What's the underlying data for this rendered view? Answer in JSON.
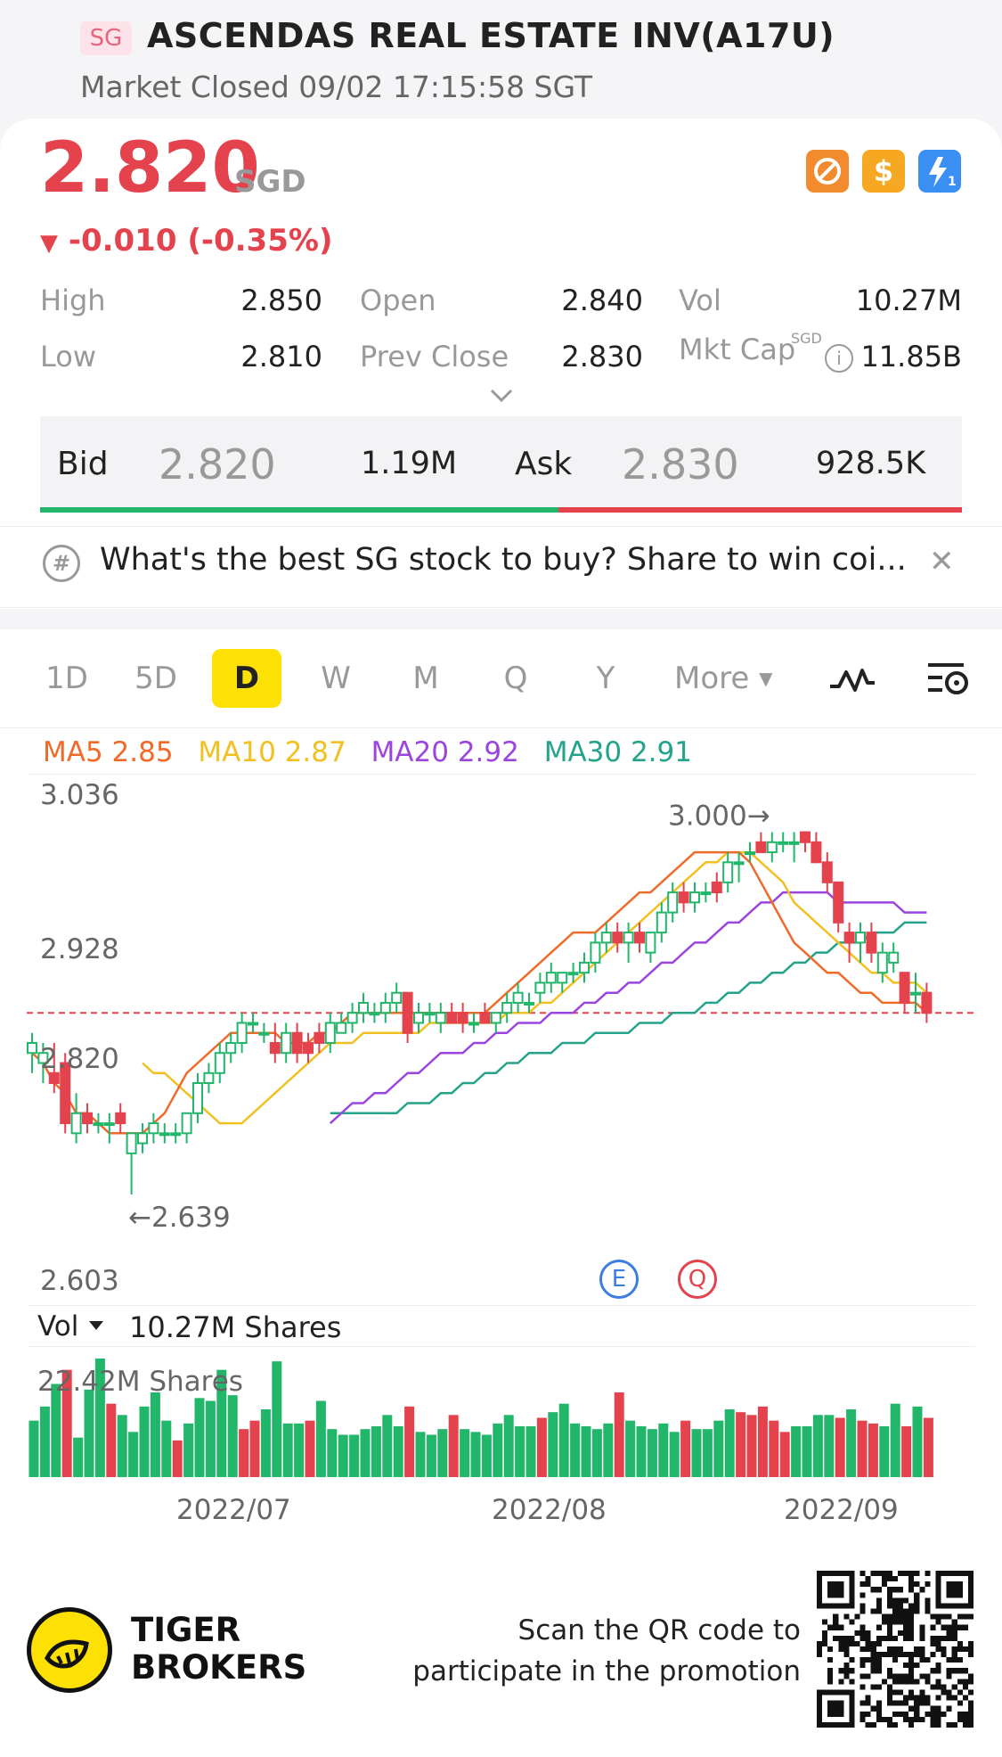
{
  "header": {
    "market_badge": "SG",
    "stock_name": "ASCENDAS REAL ESTATE INV(A17U)",
    "market_status": "Market Closed 09/02 17:15:58 SGT"
  },
  "quote": {
    "price": "2.820",
    "currency": "SGD",
    "change": "-0.010 (-0.35%)",
    "badges": [
      "no-short-icon",
      "dollar-icon",
      "lightning-icon"
    ]
  },
  "stats": {
    "high_label": "High",
    "high": "2.850",
    "low_label": "Low",
    "low": "2.810",
    "open_label": "Open",
    "open": "2.840",
    "prev_close_label": "Prev Close",
    "prev_close": "2.830",
    "vol_label": "Vol",
    "vol": "10.27M",
    "mkt_cap_label": "Mkt Cap",
    "mkt_cap_currency": "SGD",
    "mkt_cap": "11.85B"
  },
  "bidask": {
    "bid_label": "Bid",
    "bid_price": "2.820",
    "bid_size": "1.19M",
    "ask_label": "Ask",
    "ask_price": "2.830",
    "ask_size": "928.5K"
  },
  "promo": {
    "text": "What's the best SG stock to buy? Share to win coi..."
  },
  "tabs": {
    "items": [
      "1D",
      "5D",
      "D",
      "W",
      "M",
      "Q",
      "Y"
    ],
    "active": "D",
    "more": "More"
  },
  "indicators": {
    "ma5": "MA5 2.85",
    "ma10": "MA10 2.87",
    "ma20": "MA20 2.92",
    "ma30": "MA30 2.91"
  },
  "colors": {
    "up": "#21b66a",
    "down": "#e4434d",
    "ma5": "#f06a2a",
    "ma10": "#f2c021",
    "ma20": "#9b45e0",
    "ma30": "#23a38a"
  },
  "chart_data": {
    "type": "candlestick",
    "y_axis_labels": [
      "3.036",
      "2.928",
      "2.820",
      "2.603"
    ],
    "ylim": [
      2.603,
      3.036
    ],
    "current_price_line": 2.82,
    "high_marker": "3.000",
    "low_marker": "2.639",
    "x_labels": [
      "2022/07",
      "2022/08",
      "2022/09"
    ],
    "events": [
      "E",
      "Q"
    ],
    "candles": [
      {
        "o": 2.78,
        "h": 2.8,
        "l": 2.76,
        "c": 2.79
      },
      {
        "o": 2.77,
        "h": 2.79,
        "l": 2.75,
        "c": 2.78
      },
      {
        "o": 2.76,
        "h": 2.79,
        "l": 2.74,
        "c": 2.75
      },
      {
        "o": 2.77,
        "h": 2.78,
        "l": 2.7,
        "c": 2.71
      },
      {
        "o": 2.7,
        "h": 2.74,
        "l": 2.69,
        "c": 2.72
      },
      {
        "o": 2.72,
        "h": 2.73,
        "l": 2.7,
        "c": 2.71
      },
      {
        "o": 2.71,
        "h": 2.72,
        "l": 2.7,
        "c": 2.71
      },
      {
        "o": 2.71,
        "h": 2.72,
        "l": 2.69,
        "c": 2.71
      },
      {
        "o": 2.72,
        "h": 2.73,
        "l": 2.7,
        "c": 2.71
      },
      {
        "o": 2.68,
        "h": 2.7,
        "l": 2.639,
        "c": 2.7
      },
      {
        "o": 2.69,
        "h": 2.71,
        "l": 2.68,
        "c": 2.7
      },
      {
        "o": 2.7,
        "h": 2.72,
        "l": 2.69,
        "c": 2.71
      },
      {
        "o": 2.7,
        "h": 2.71,
        "l": 2.69,
        "c": 2.7
      },
      {
        "o": 2.7,
        "h": 2.71,
        "l": 2.69,
        "c": 2.7
      },
      {
        "o": 2.7,
        "h": 2.72,
        "l": 2.69,
        "c": 2.72
      },
      {
        "o": 2.72,
        "h": 2.76,
        "l": 2.71,
        "c": 2.75
      },
      {
        "o": 2.75,
        "h": 2.77,
        "l": 2.74,
        "c": 2.76
      },
      {
        "o": 2.76,
        "h": 2.79,
        "l": 2.75,
        "c": 2.78
      },
      {
        "o": 2.78,
        "h": 2.8,
        "l": 2.77,
        "c": 2.79
      },
      {
        "o": 2.79,
        "h": 2.82,
        "l": 2.78,
        "c": 2.81
      },
      {
        "o": 2.81,
        "h": 2.82,
        "l": 2.8,
        "c": 2.81
      },
      {
        "o": 2.8,
        "h": 2.81,
        "l": 2.79,
        "c": 2.8
      },
      {
        "o": 2.79,
        "h": 2.81,
        "l": 2.77,
        "c": 2.78
      },
      {
        "o": 2.78,
        "h": 2.81,
        "l": 2.77,
        "c": 2.8
      },
      {
        "o": 2.8,
        "h": 2.81,
        "l": 2.77,
        "c": 2.78
      },
      {
        "o": 2.79,
        "h": 2.8,
        "l": 2.77,
        "c": 2.78
      },
      {
        "o": 2.8,
        "h": 2.81,
        "l": 2.78,
        "c": 2.79
      },
      {
        "o": 2.79,
        "h": 2.82,
        "l": 2.78,
        "c": 2.81
      },
      {
        "o": 2.8,
        "h": 2.82,
        "l": 2.8,
        "c": 2.81
      },
      {
        "o": 2.81,
        "h": 2.83,
        "l": 2.8,
        "c": 2.82
      },
      {
        "o": 2.82,
        "h": 2.84,
        "l": 2.81,
        "c": 2.83
      },
      {
        "o": 2.82,
        "h": 2.83,
        "l": 2.81,
        "c": 2.82
      },
      {
        "o": 2.82,
        "h": 2.84,
        "l": 2.81,
        "c": 2.83
      },
      {
        "o": 2.83,
        "h": 2.85,
        "l": 2.82,
        "c": 2.84
      },
      {
        "o": 2.84,
        "h": 2.84,
        "l": 2.79,
        "c": 2.8
      },
      {
        "o": 2.81,
        "h": 2.83,
        "l": 2.8,
        "c": 2.82
      },
      {
        "o": 2.82,
        "h": 2.83,
        "l": 2.81,
        "c": 2.82
      },
      {
        "o": 2.81,
        "h": 2.83,
        "l": 2.8,
        "c": 2.82
      },
      {
        "o": 2.82,
        "h": 2.83,
        "l": 2.81,
        "c": 2.81
      },
      {
        "o": 2.82,
        "h": 2.83,
        "l": 2.8,
        "c": 2.81
      },
      {
        "o": 2.81,
        "h": 2.82,
        "l": 2.8,
        "c": 2.81
      },
      {
        "o": 2.82,
        "h": 2.83,
        "l": 2.81,
        "c": 2.81
      },
      {
        "o": 2.81,
        "h": 2.82,
        "l": 2.8,
        "c": 2.82
      },
      {
        "o": 2.82,
        "h": 2.84,
        "l": 2.81,
        "c": 2.83
      },
      {
        "o": 2.83,
        "h": 2.85,
        "l": 2.82,
        "c": 2.84
      },
      {
        "o": 2.83,
        "h": 2.84,
        "l": 2.82,
        "c": 2.83
      },
      {
        "o": 2.84,
        "h": 2.86,
        "l": 2.83,
        "c": 2.85
      },
      {
        "o": 2.85,
        "h": 2.87,
        "l": 2.84,
        "c": 2.86
      },
      {
        "o": 2.85,
        "h": 2.86,
        "l": 2.84,
        "c": 2.86
      },
      {
        "o": 2.86,
        "h": 2.87,
        "l": 2.85,
        "c": 2.86
      },
      {
        "o": 2.86,
        "h": 2.88,
        "l": 2.85,
        "c": 2.87
      },
      {
        "o": 2.87,
        "h": 2.9,
        "l": 2.86,
        "c": 2.89
      },
      {
        "o": 2.89,
        "h": 2.91,
        "l": 2.88,
        "c": 2.9
      },
      {
        "o": 2.9,
        "h": 2.91,
        "l": 2.88,
        "c": 2.89
      },
      {
        "o": 2.89,
        "h": 2.91,
        "l": 2.87,
        "c": 2.9
      },
      {
        "o": 2.9,
        "h": 2.91,
        "l": 2.88,
        "c": 2.89
      },
      {
        "o": 2.88,
        "h": 2.9,
        "l": 2.87,
        "c": 2.9
      },
      {
        "o": 2.9,
        "h": 2.93,
        "l": 2.89,
        "c": 2.92
      },
      {
        "o": 2.92,
        "h": 2.95,
        "l": 2.91,
        "c": 2.94
      },
      {
        "o": 2.94,
        "h": 2.95,
        "l": 2.92,
        "c": 2.93
      },
      {
        "o": 2.93,
        "h": 2.95,
        "l": 2.92,
        "c": 2.94
      },
      {
        "o": 2.94,
        "h": 2.95,
        "l": 2.93,
        "c": 2.94
      },
      {
        "o": 2.95,
        "h": 2.96,
        "l": 2.93,
        "c": 2.94
      },
      {
        "o": 2.95,
        "h": 2.98,
        "l": 2.94,
        "c": 2.97
      },
      {
        "o": 2.97,
        "h": 2.98,
        "l": 2.95,
        "c": 2.97
      },
      {
        "o": 2.98,
        "h": 2.99,
        "l": 2.97,
        "c": 2.98
      },
      {
        "o": 2.99,
        "h": 3.0,
        "l": 2.98,
        "c": 2.98
      },
      {
        "o": 2.98,
        "h": 3.0,
        "l": 2.97,
        "c": 2.99
      },
      {
        "o": 2.99,
        "h": 3.0,
        "l": 2.98,
        "c": 2.99
      },
      {
        "o": 2.99,
        "h": 3.0,
        "l": 2.97,
        "c": 2.99
      },
      {
        "o": 3.0,
        "h": 3.0,
        "l": 2.98,
        "c": 2.99
      },
      {
        "o": 2.99,
        "h": 3.0,
        "l": 2.97,
        "c": 2.97
      },
      {
        "o": 2.97,
        "h": 2.98,
        "l": 2.94,
        "c": 2.95
      },
      {
        "o": 2.95,
        "h": 2.95,
        "l": 2.9,
        "c": 2.91
      },
      {
        "o": 2.9,
        "h": 2.91,
        "l": 2.87,
        "c": 2.89
      },
      {
        "o": 2.89,
        "h": 2.91,
        "l": 2.87,
        "c": 2.9
      },
      {
        "o": 2.9,
        "h": 2.91,
        "l": 2.87,
        "c": 2.88
      },
      {
        "o": 2.86,
        "h": 2.89,
        "l": 2.85,
        "c": 2.88
      },
      {
        "o": 2.87,
        "h": 2.89,
        "l": 2.86,
        "c": 2.88
      },
      {
        "o": 2.86,
        "h": 2.86,
        "l": 2.82,
        "c": 2.83
      },
      {
        "o": 2.84,
        "h": 2.86,
        "l": 2.82,
        "c": 2.84
      },
      {
        "o": 2.84,
        "h": 2.85,
        "l": 2.81,
        "c": 2.82
      }
    ],
    "ma5": [
      2.78,
      2.77,
      2.75,
      2.74,
      2.72,
      2.72,
      2.71,
      2.7,
      2.7,
      2.7,
      2.7,
      2.71,
      2.72,
      2.74,
      2.76,
      2.77,
      2.78,
      2.79,
      2.8,
      2.8,
      2.8,
      2.8,
      2.8,
      2.79,
      2.79,
      2.79,
      2.8,
      2.8,
      2.81,
      2.82,
      2.82,
      2.82,
      2.82,
      2.82,
      2.82,
      2.82,
      2.82,
      2.82,
      2.82,
      2.82,
      2.82,
      2.82,
      2.83,
      2.84,
      2.85,
      2.86,
      2.87,
      2.88,
      2.89,
      2.9,
      2.9,
      2.9,
      2.91,
      2.92,
      2.93,
      2.94,
      2.94,
      2.95,
      2.96,
      2.97,
      2.98,
      2.98,
      2.98,
      2.98,
      2.98,
      2.97,
      2.95,
      2.93,
      2.91,
      2.89,
      2.88,
      2.87,
      2.86,
      2.86,
      2.85,
      2.84,
      2.84,
      2.83,
      2.83,
      2.83,
      2.83,
      2.82
    ],
    "ma10": [
      2.77,
      2.76,
      2.76,
      2.75,
      2.74,
      2.73,
      2.72,
      2.71,
      2.71,
      2.71,
      2.72,
      2.73,
      2.74,
      2.75,
      2.76,
      2.77,
      2.78,
      2.79,
      2.79,
      2.79,
      2.8,
      2.8,
      2.8,
      2.8,
      2.8,
      2.8,
      2.81,
      2.81,
      2.81,
      2.81,
      2.81,
      2.81,
      2.81,
      2.82,
      2.82,
      2.82,
      2.83,
      2.83,
      2.84,
      2.85,
      2.86,
      2.87,
      2.88,
      2.89,
      2.9,
      2.91,
      2.92,
      2.93,
      2.94,
      2.95,
      2.96,
      2.97,
      2.97,
      2.98,
      2.98,
      2.98,
      2.97,
      2.96,
      2.95,
      2.93,
      2.92,
      2.91,
      2.9,
      2.89,
      2.88,
      2.87,
      2.86,
      2.86,
      2.85,
      2.85,
      2.85,
      2.84
    ],
    "ma20": [
      2.71,
      2.72,
      2.73,
      2.73,
      2.74,
      2.74,
      2.75,
      2.76,
      2.76,
      2.77,
      2.78,
      2.78,
      2.78,
      2.79,
      2.79,
      2.8,
      2.8,
      2.81,
      2.81,
      2.81,
      2.82,
      2.82,
      2.82,
      2.83,
      2.83,
      2.84,
      2.84,
      2.85,
      2.85,
      2.86,
      2.87,
      2.87,
      2.88,
      2.89,
      2.89,
      2.9,
      2.91,
      2.91,
      2.92,
      2.93,
      2.93,
      2.94,
      2.94,
      2.94,
      2.94,
      2.94,
      2.93,
      2.93,
      2.93,
      2.93,
      2.93,
      2.93,
      2.92,
      2.92,
      2.92
    ],
    "ma30": [
      2.72,
      2.72,
      2.72,
      2.72,
      2.72,
      2.72,
      2.72,
      2.73,
      2.73,
      2.73,
      2.74,
      2.74,
      2.75,
      2.75,
      2.76,
      2.76,
      2.77,
      2.77,
      2.78,
      2.78,
      2.78,
      2.79,
      2.79,
      2.79,
      2.8,
      2.8,
      2.8,
      2.8,
      2.81,
      2.81,
      2.81,
      2.82,
      2.82,
      2.82,
      2.83,
      2.83,
      2.84,
      2.84,
      2.85,
      2.85,
      2.86,
      2.86,
      2.87,
      2.87,
      2.88,
      2.88,
      2.89,
      2.89,
      2.89,
      2.9,
      2.9,
      2.9,
      2.91,
      2.91,
      2.91
    ]
  },
  "volume": {
    "label": "Vol",
    "current": "10.27M Shares",
    "max_label": "22.42M Shares",
    "max": 22.42,
    "bars": [
      10.0,
      12.5,
      16.5,
      19.0,
      7.0,
      15.5,
      21.0,
      13.0,
      11.0,
      8.0,
      12.5,
      15.0,
      10.0,
      6.5,
      9.5,
      14.0,
      13.5,
      19.0,
      14.5,
      8.5,
      10.0,
      12.0,
      20.5,
      9.5,
      9.5,
      10.0,
      13.5,
      8.5,
      7.5,
      7.5,
      8.5,
      9.0,
      11.0,
      9.0,
      12.5,
      8.0,
      7.5,
      8.5,
      11.0,
      8.5,
      8.0,
      7.5,
      9.5,
      11.0,
      9.0,
      9.0,
      10.5,
      11.5,
      13.0,
      9.5,
      9.0,
      8.5,
      9.5,
      15.0,
      10.0,
      9.0,
      8.5,
      9.5,
      8.0,
      10.0,
      8.5,
      8.5,
      10.0,
      12.0,
      11.5,
      11.0,
      12.5,
      10.0,
      8.0,
      9.0,
      9.0,
      11.0,
      11.0,
      10.5,
      12.0,
      10.0,
      9.5,
      9.0,
      13.0,
      9.0,
      12.5,
      10.5
    ],
    "up": [
      1,
      1,
      1,
      0,
      1,
      1,
      1,
      0,
      1,
      1,
      1,
      1,
      1,
      0,
      1,
      1,
      1,
      1,
      1,
      0,
      0,
      1,
      1,
      1,
      1,
      0,
      1,
      1,
      1,
      1,
      1,
      1,
      1,
      1,
      0,
      1,
      1,
      1,
      0,
      1,
      1,
      1,
      1,
      1,
      1,
      1,
      0,
      1,
      1,
      1,
      1,
      1,
      1,
      0,
      1,
      1,
      1,
      1,
      1,
      0,
      1,
      1,
      1,
      1,
      0,
      0,
      0,
      0,
      0,
      1,
      1,
      1,
      1,
      0,
      1,
      0,
      0,
      1,
      1,
      0,
      1,
      0
    ]
  },
  "x_axis": {
    "jul": "2022/07",
    "aug": "2022/08",
    "sep": "2022/09"
  },
  "footer": {
    "brand_line1": "TIGER",
    "brand_line2": "BROKERS",
    "qr_text_line1": "Scan the QR code to",
    "qr_text_line2": "participate in the promotion"
  }
}
